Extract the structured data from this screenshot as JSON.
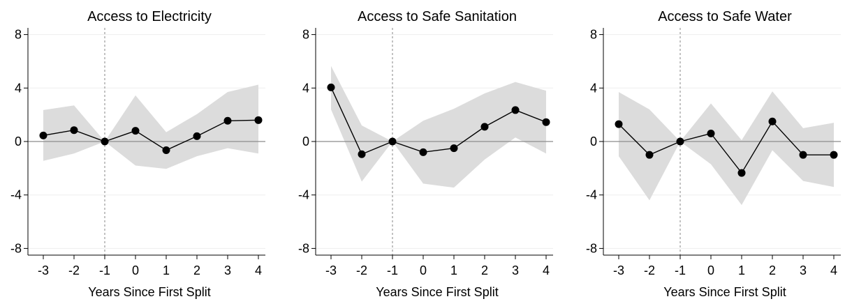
{
  "chart_data": [
    {
      "type": "line",
      "title": "Access to Electricity",
      "xlabel": "Years Since First Split",
      "ylabel": "",
      "x": [
        -3,
        -2,
        -1,
        0,
        1,
        2,
        3,
        4
      ],
      "xticks": [
        "-3",
        "-2",
        "-1",
        "0",
        "1",
        "2",
        "3",
        "4"
      ],
      "yticks": [
        "8",
        "4",
        "0",
        "-4",
        "-8"
      ],
      "ylim": [
        -8.5,
        8.5
      ],
      "reference_x": -1,
      "reference_y": 0,
      "series": [
        {
          "values": [
            0.45,
            0.85,
            0.0,
            0.8,
            -0.65,
            0.4,
            1.55,
            1.6
          ]
        }
      ],
      "ci_lower": [
        -1.45,
        -0.9,
        0.0,
        -1.8,
        -2.05,
        -1.1,
        -0.5,
        -0.9
      ],
      "ci_upper": [
        2.35,
        2.7,
        0.0,
        3.45,
        0.7,
        2.05,
        3.7,
        4.25
      ]
    },
    {
      "type": "line",
      "title": "Access to Safe Sanitation",
      "xlabel": "Years Since First Split",
      "ylabel": "",
      "x": [
        -3,
        -2,
        -1,
        0,
        1,
        2,
        3,
        4
      ],
      "xticks": [
        "-3",
        "-2",
        "-1",
        "0",
        "1",
        "2",
        "3",
        "4"
      ],
      "yticks": [
        "8",
        "4",
        "0",
        "-4",
        "-8"
      ],
      "ylim": [
        -8.5,
        8.5
      ],
      "reference_x": -1,
      "reference_y": 0,
      "series": [
        {
          "values": [
            4.05,
            -0.95,
            0.0,
            -0.8,
            -0.5,
            1.1,
            2.35,
            1.45
          ]
        }
      ],
      "ci_lower": [
        2.4,
        -3.0,
        0.0,
        -3.15,
        -3.45,
        -1.35,
        0.3,
        -0.9
      ],
      "ci_upper": [
        5.65,
        1.2,
        0.0,
        1.55,
        2.45,
        3.6,
        4.45,
        3.8
      ]
    },
    {
      "type": "line",
      "title": "Access to Safe Water",
      "xlabel": "Years Since First Split",
      "ylabel": "",
      "x": [
        -3,
        -2,
        -1,
        0,
        1,
        2,
        3,
        4
      ],
      "xticks": [
        "-3",
        "-2",
        "-1",
        "0",
        "1",
        "2",
        "3",
        "4"
      ],
      "yticks": [
        "8",
        "4",
        "0",
        "-4",
        "-8"
      ],
      "ylim": [
        -8.5,
        8.5
      ],
      "reference_x": -1,
      "reference_y": 0,
      "series": [
        {
          "values": [
            1.3,
            -1.0,
            0.0,
            0.6,
            -2.35,
            1.5,
            -1.0,
            -1.0
          ]
        }
      ],
      "ci_lower": [
        -1.1,
        -4.4,
        0.0,
        -1.7,
        -4.75,
        -0.65,
        -2.95,
        -3.4
      ],
      "ci_upper": [
        3.7,
        2.4,
        0.0,
        2.85,
        0.1,
        3.75,
        1.0,
        1.4
      ]
    }
  ],
  "colors": {
    "ci_band": "#dcdcdc",
    "line": "#000000",
    "marker": "#000000",
    "gridline": "#eeeeee",
    "zero_line": "#8c8c8c",
    "reference_line": "#999999",
    "axis": "#000000"
  }
}
